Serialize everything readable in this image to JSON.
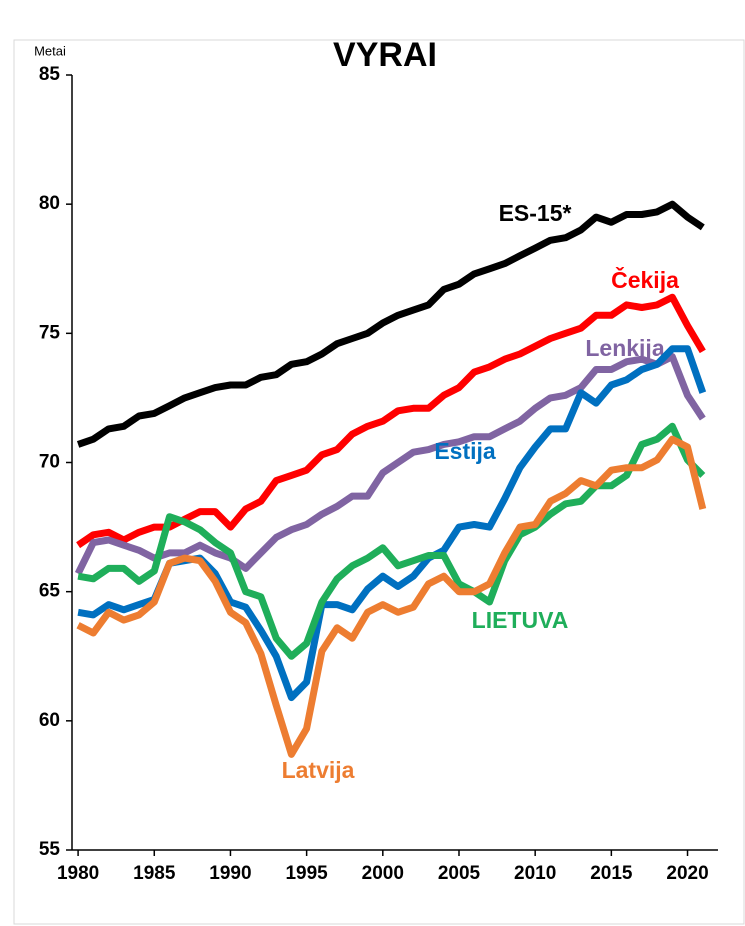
{
  "chart_data": {
    "type": "line",
    "title": "VYRAI",
    "y_label": "Metai",
    "x": [
      1980,
      1981,
      1982,
      1983,
      1984,
      1985,
      1986,
      1987,
      1988,
      1989,
      1990,
      1991,
      1992,
      1993,
      1994,
      1995,
      1996,
      1997,
      1998,
      1999,
      2000,
      2001,
      2002,
      2003,
      2004,
      2005,
      2006,
      2007,
      2008,
      2009,
      2010,
      2011,
      2012,
      2013,
      2014,
      2015,
      2016,
      2017,
      2018,
      2019,
      2020,
      2021
    ],
    "xlim": [
      1979.6,
      2022
    ],
    "xticks": [
      1980,
      1985,
      1990,
      1995,
      2000,
      2005,
      2010,
      2015,
      2020
    ],
    "ylim": [
      55,
      85
    ],
    "yticks": [
      55,
      60,
      65,
      70,
      75,
      80,
      85
    ],
    "grid": false,
    "series": [
      {
        "name": "ES-15*",
        "color": "#000000",
        "values": [
          70.7,
          70.9,
          71.3,
          71.4,
          71.8,
          71.9,
          72.2,
          72.5,
          72.7,
          72.9,
          73.0,
          73.0,
          73.3,
          73.4,
          73.8,
          73.9,
          74.2,
          74.6,
          74.8,
          75.0,
          75.4,
          75.7,
          75.9,
          76.1,
          76.7,
          76.9,
          77.3,
          77.5,
          77.7,
          78.0,
          78.3,
          78.6,
          78.7,
          79.0,
          79.5,
          79.3,
          79.6,
          79.6,
          79.7,
          80.0,
          79.5,
          79.1
        ]
      },
      {
        "name": "Čekija",
        "color": "#ff0000",
        "values": [
          66.8,
          67.2,
          67.3,
          67.0,
          67.3,
          67.5,
          67.5,
          67.8,
          68.1,
          68.1,
          67.5,
          68.2,
          68.5,
          69.3,
          69.5,
          69.7,
          70.3,
          70.5,
          71.1,
          71.4,
          71.6,
          72.0,
          72.1,
          72.1,
          72.6,
          72.9,
          73.5,
          73.7,
          74.0,
          74.2,
          74.5,
          74.8,
          75.0,
          75.2,
          75.7,
          75.7,
          76.1,
          76.0,
          76.1,
          76.4,
          75.3,
          74.3
        ]
      },
      {
        "name": "Lenkija",
        "color": "#8064a2",
        "values": [
          65.7,
          66.9,
          67.0,
          66.8,
          66.6,
          66.3,
          66.5,
          66.5,
          66.8,
          66.5,
          66.3,
          65.9,
          66.5,
          67.1,
          67.4,
          67.6,
          68.0,
          68.3,
          68.7,
          68.7,
          69.6,
          70.0,
          70.4,
          70.5,
          70.7,
          70.8,
          71.0,
          71.0,
          71.3,
          71.6,
          72.1,
          72.5,
          72.6,
          72.9,
          73.6,
          73.6,
          73.9,
          74.0,
          73.8,
          74.1,
          72.6,
          71.7
        ]
      },
      {
        "name": "Estija",
        "color": "#0070c0",
        "values": [
          64.2,
          64.1,
          64.5,
          64.3,
          64.5,
          64.7,
          66.1,
          66.2,
          66.3,
          65.7,
          64.6,
          64.4,
          63.5,
          62.5,
          60.9,
          61.5,
          64.5,
          64.5,
          64.3,
          65.1,
          65.6,
          65.2,
          65.6,
          66.3,
          66.6,
          67.5,
          67.6,
          67.5,
          68.6,
          69.8,
          70.6,
          71.3,
          71.3,
          72.7,
          72.3,
          73.0,
          73.2,
          73.6,
          73.8,
          74.4,
          74.4,
          72.7
        ]
      },
      {
        "name": "LIETUVA",
        "color": "#1fae5a",
        "values": [
          65.6,
          65.5,
          65.9,
          65.9,
          65.4,
          65.8,
          67.9,
          67.7,
          67.4,
          66.9,
          66.5,
          65.0,
          64.8,
          63.2,
          62.5,
          63.0,
          64.6,
          65.5,
          66.0,
          66.3,
          66.7,
          66.0,
          66.2,
          66.4,
          66.4,
          65.3,
          65.0,
          64.6,
          66.2,
          67.2,
          67.5,
          68.0,
          68.4,
          68.5,
          69.1,
          69.1,
          69.5,
          70.7,
          70.9,
          71.4,
          70.1,
          69.5
        ]
      },
      {
        "name": "Latvija",
        "color": "#ed7d31",
        "values": [
          63.7,
          63.4,
          64.2,
          63.9,
          64.1,
          64.6,
          66.1,
          66.3,
          66.2,
          65.4,
          64.2,
          63.8,
          62.6,
          60.6,
          58.7,
          59.7,
          62.7,
          63.6,
          63.2,
          64.2,
          64.5,
          64.2,
          64.4,
          65.3,
          65.6,
          65.0,
          65.0,
          65.3,
          66.5,
          67.5,
          67.6,
          68.5,
          68.8,
          69.3,
          69.1,
          69.7,
          69.8,
          69.8,
          70.1,
          70.9,
          70.6,
          68.2
        ]
      }
    ]
  }
}
